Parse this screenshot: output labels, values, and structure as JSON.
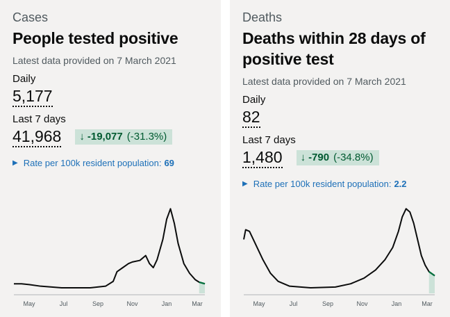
{
  "cases": {
    "caption": "Cases",
    "title": "People tested positive",
    "latest": "Latest data provided on 7 March 2021",
    "daily_label": "Daily",
    "daily_value": "5,177",
    "week_label": "Last 7 days",
    "week_value": "41,968",
    "change_abs": "-19,077",
    "change_pct": "(-31.3%)",
    "rate_label": "Rate per 100k resident population:",
    "rate_value": "69",
    "chart_data": {
      "type": "area",
      "x_ticks": [
        "May",
        "Jul",
        "Sep",
        "Nov",
        "Jan",
        "Mar"
      ],
      "profile": [
        [
          0,
          0.05
        ],
        [
          0.04,
          0.05
        ],
        [
          0.08,
          0.04
        ],
        [
          0.14,
          0.02
        ],
        [
          0.25,
          0.0
        ],
        [
          0.4,
          0.0
        ],
        [
          0.48,
          0.02
        ],
        [
          0.52,
          0.08
        ],
        [
          0.54,
          0.2
        ],
        [
          0.57,
          0.25
        ],
        [
          0.6,
          0.3
        ],
        [
          0.62,
          0.32
        ],
        [
          0.66,
          0.34
        ],
        [
          0.69,
          0.4
        ],
        [
          0.71,
          0.3
        ],
        [
          0.73,
          0.25
        ],
        [
          0.75,
          0.35
        ],
        [
          0.78,
          0.6
        ],
        [
          0.8,
          0.85
        ],
        [
          0.82,
          0.98
        ],
        [
          0.84,
          0.8
        ],
        [
          0.86,
          0.55
        ],
        [
          0.89,
          0.3
        ],
        [
          0.92,
          0.18
        ],
        [
          0.95,
          0.1
        ],
        [
          0.97,
          0.07
        ],
        [
          1.0,
          0.05
        ]
      ],
      "colors": {
        "line": "#0b0c0c",
        "recent": "#00703c",
        "recent_fill": "#cce2d8"
      }
    }
  },
  "deaths": {
    "caption": "Deaths",
    "title_line1": "Deaths within 28 days of",
    "title_line2": "positive test",
    "latest": "Latest data provided on 7 March 2021",
    "daily_label": "Daily",
    "daily_value": "82",
    "week_label": "Last 7 days",
    "week_value": "1,480",
    "change_abs": "-790",
    "change_pct": "(-34.8%)",
    "rate_label": "Rate per 100k resident population:",
    "rate_value": "2.2",
    "chart_data": {
      "type": "area",
      "x_ticks": [
        "May",
        "Jul",
        "Sep",
        "Nov",
        "Jan",
        "Mar"
      ],
      "profile": [
        [
          0,
          0.6
        ],
        [
          0.01,
          0.72
        ],
        [
          0.03,
          0.7
        ],
        [
          0.06,
          0.55
        ],
        [
          0.1,
          0.35
        ],
        [
          0.14,
          0.18
        ],
        [
          0.18,
          0.08
        ],
        [
          0.24,
          0.02
        ],
        [
          0.35,
          0.0
        ],
        [
          0.48,
          0.01
        ],
        [
          0.56,
          0.05
        ],
        [
          0.63,
          0.12
        ],
        [
          0.69,
          0.22
        ],
        [
          0.74,
          0.35
        ],
        [
          0.78,
          0.5
        ],
        [
          0.81,
          0.7
        ],
        [
          0.83,
          0.88
        ],
        [
          0.85,
          0.98
        ],
        [
          0.87,
          0.94
        ],
        [
          0.89,
          0.8
        ],
        [
          0.91,
          0.6
        ],
        [
          0.93,
          0.4
        ],
        [
          0.95,
          0.28
        ],
        [
          0.97,
          0.2
        ],
        [
          1.0,
          0.15
        ]
      ],
      "colors": {
        "line": "#0b0c0c",
        "recent": "#00703c",
        "recent_fill": "#cce2d8"
      }
    }
  }
}
